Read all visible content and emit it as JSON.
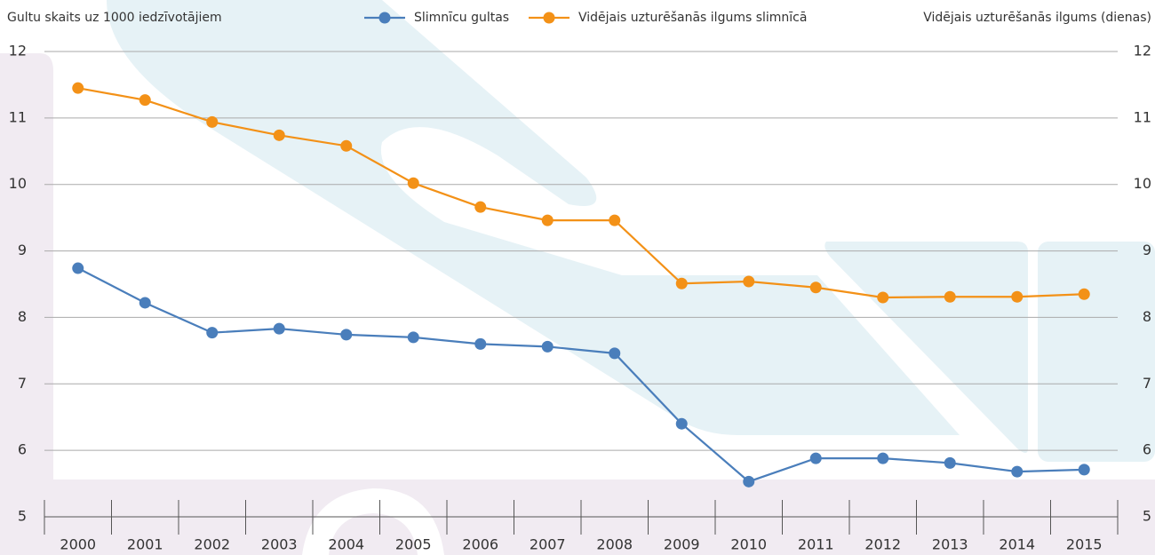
{
  "chart_data": {
    "type": "line",
    "y_axis_label": "Gultu skaits uz 1000 iedzīvotājiem",
    "y2_axis_label": "Vidējais uzturēšanās ilgums (dienas)",
    "categories": [
      "2000",
      "2001",
      "2002",
      "2003",
      "2004",
      "2005",
      "2006",
      "2007",
      "2008",
      "2009",
      "2010",
      "2011",
      "2012",
      "2013",
      "2014",
      "2015"
    ],
    "series": [
      {
        "name": "Slimnīcu gultas",
        "color": "#4a7ebb",
        "values": [
          8.74,
          8.22,
          7.77,
          7.83,
          7.74,
          7.7,
          7.6,
          7.56,
          7.46,
          6.4,
          5.53,
          5.88,
          5.88,
          5.81,
          5.68,
          5.71
        ]
      },
      {
        "name": "Vidējais uzturēšanās ilgums slimnīcā",
        "color": "#f39117",
        "axis": "y2",
        "values": [
          11.45,
          11.27,
          10.94,
          10.74,
          10.58,
          10.02,
          9.66,
          9.46,
          9.46,
          8.51,
          8.54,
          8.45,
          8.3,
          8.31,
          8.31,
          8.35
        ]
      }
    ],
    "ylim": [
      5,
      12
    ],
    "yticks": [
      5,
      6,
      7,
      8,
      9,
      10,
      11,
      12
    ],
    "y2lim": [
      5,
      12
    ],
    "y2ticks": [
      5,
      6,
      7,
      8,
      9,
      10,
      11,
      12
    ],
    "grid": true
  }
}
